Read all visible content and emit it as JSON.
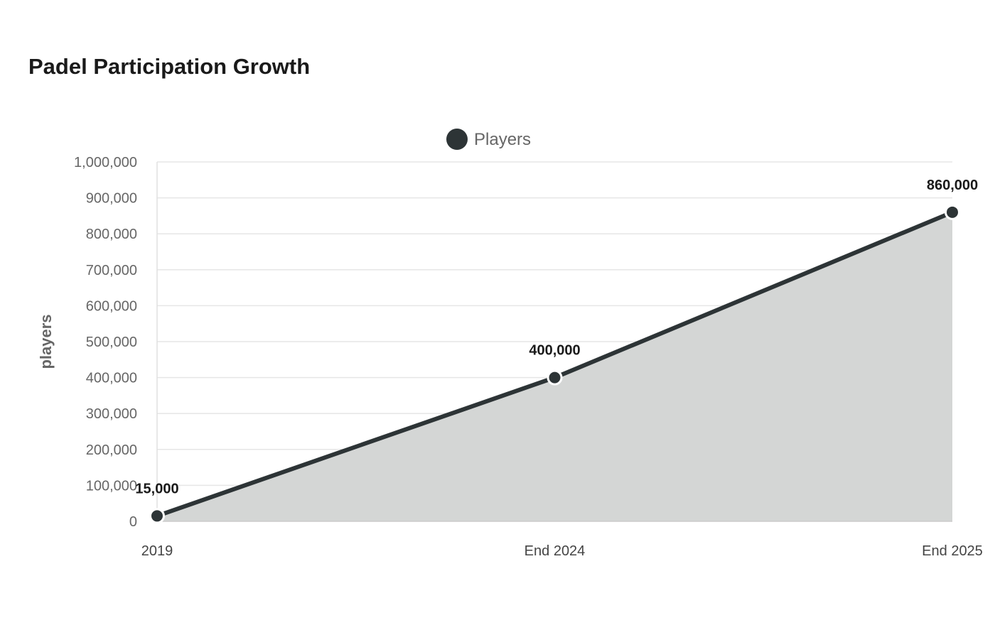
{
  "chart_data": {
    "type": "area",
    "title": "Padel Participation Growth",
    "ylabel": "players",
    "xlabel": "",
    "categories": [
      "2019",
      "End 2024",
      "End 2025"
    ],
    "series": [
      {
        "name": "Players",
        "values": [
          15000,
          400000,
          860000
        ],
        "data_labels": [
          "15,000",
          "400,000",
          "860,000"
        ]
      }
    ],
    "ylim": [
      0,
      1000000
    ],
    "yticks": [
      0,
      100000,
      200000,
      300000,
      400000,
      500000,
      600000,
      700000,
      800000,
      900000,
      1000000
    ],
    "ytick_labels": [
      "0",
      "100,000",
      "200,000",
      "300,000",
      "400,000",
      "500,000",
      "600,000",
      "700,000",
      "800,000",
      "900,000",
      "1,000,000"
    ],
    "grid": true,
    "legend_position": "top-center",
    "colors": {
      "line": "#2d3436",
      "fill": "#d4d6d5",
      "grid": "#e6e6e6",
      "point_stroke": "#ffffff"
    }
  }
}
